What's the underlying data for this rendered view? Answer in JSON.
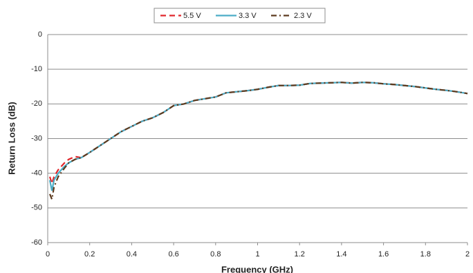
{
  "chart_data": {
    "type": "line",
    "x_label": "Frequency (GHz)",
    "y_label": "Return Loss (dB)",
    "x": [
      0.01,
      0.02,
      0.03,
      0.05,
      0.08,
      0.1,
      0.13,
      0.16,
      0.2,
      0.25,
      0.3,
      0.35,
      0.4,
      0.45,
      0.5,
      0.55,
      0.6,
      0.65,
      0.7,
      0.75,
      0.8,
      0.85,
      0.9,
      0.95,
      1.0,
      1.05,
      1.1,
      1.15,
      1.2,
      1.25,
      1.3,
      1.35,
      1.4,
      1.45,
      1.5,
      1.55,
      1.6,
      1.65,
      1.7,
      1.75,
      1.8,
      1.85,
      1.9,
      1.95,
      2.0
    ],
    "series": [
      {
        "name": "5.5 V",
        "color": "#e0262b",
        "line_style": "dashed",
        "values": [
          -41,
          -43,
          -41,
          -39,
          -37,
          -36,
          -35.2,
          -35.5,
          -34,
          -32,
          -30,
          -28,
          -26.5,
          -25,
          -24,
          -22.5,
          -20.5,
          -20,
          -19,
          -18.5,
          -18,
          -16.8,
          -16.5,
          -16.2,
          -15.8,
          -15.2,
          -14.7,
          -14.7,
          -14.6,
          -14.1,
          -14,
          -13.9,
          -13.8,
          -14,
          -13.8,
          -13.9,
          -14.2,
          -14.4,
          -14.7,
          -15,
          -15.4,
          -15.8,
          -16.1,
          -16.5,
          -17
        ]
      },
      {
        "name": "3.3 V",
        "color": "#4bacc6",
        "line_style": "solid",
        "values": [
          -42,
          -45,
          -42,
          -40,
          -38,
          -37,
          -36,
          -35.5,
          -34,
          -32,
          -30,
          -28,
          -26.5,
          -25,
          -24,
          -22.5,
          -20.5,
          -20,
          -19,
          -18.5,
          -18,
          -16.8,
          -16.5,
          -16.2,
          -15.8,
          -15.2,
          -14.7,
          -14.7,
          -14.6,
          -14.1,
          -14,
          -13.9,
          -13.8,
          -14,
          -13.8,
          -13.9,
          -14.2,
          -14.4,
          -14.7,
          -15,
          -15.4,
          -15.8,
          -16.1,
          -16.5,
          -17
        ]
      },
      {
        "name": "2.3 V",
        "color": "#5c3a1e",
        "line_style": "dashdot",
        "values": [
          -46,
          -47.5,
          -44,
          -41,
          -38.5,
          -37,
          -36,
          -35.5,
          -34,
          -32,
          -30,
          -28,
          -26.5,
          -25,
          -24,
          -22.5,
          -20.5,
          -20,
          -19,
          -18.5,
          -18,
          -16.8,
          -16.5,
          -16.2,
          -15.8,
          -15.2,
          -14.7,
          -14.7,
          -14.6,
          -14.1,
          -14,
          -13.9,
          -13.8,
          -14,
          -13.8,
          -13.9,
          -14.2,
          -14.4,
          -14.7,
          -15,
          -15.4,
          -15.8,
          -16.1,
          -16.5,
          -17
        ]
      }
    ],
    "xlim": [
      0,
      2
    ],
    "xticks": [
      0,
      0.2,
      0.4,
      0.6,
      0.8,
      1,
      1.2,
      1.4,
      1.6,
      1.8,
      2
    ],
    "ylim": [
      -60,
      0
    ],
    "yticks": [
      0,
      -10,
      -20,
      -30,
      -40,
      -50,
      -60
    ],
    "grid": true,
    "legend": "top"
  }
}
